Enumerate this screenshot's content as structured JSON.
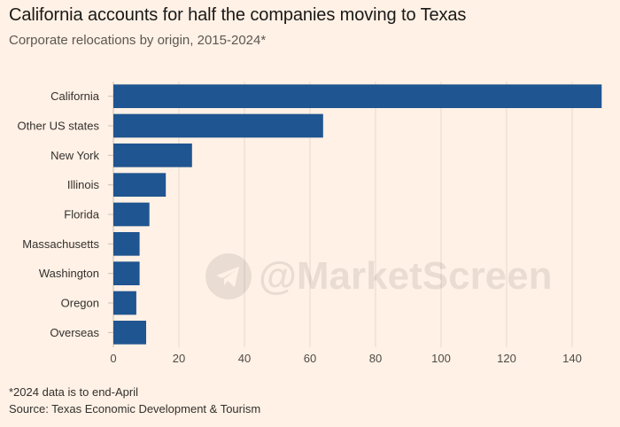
{
  "title": "California accounts for half the companies moving to Texas",
  "subtitle": "Corporate relocations by origin, 2015-2024*",
  "note": "*2024 data is to end-April",
  "source": "Source: Texas Economic Development & Tourism",
  "watermark": "@MarketScreen",
  "colors": {
    "bar": "#1f5590",
    "background": "#fff1e5"
  },
  "chart_data": {
    "type": "bar",
    "orientation": "horizontal",
    "title": "California accounts for half the companies moving to Texas",
    "subtitle": "Corporate relocations by origin, 2015-2024*",
    "categories": [
      "California",
      "Other US states",
      "New York",
      "Illinois",
      "Florida",
      "Massachusetts",
      "Washington",
      "Oregon",
      "Overseas"
    ],
    "values": [
      149,
      64,
      24,
      16,
      11,
      8,
      8,
      7,
      10
    ],
    "xlim": [
      0,
      150
    ],
    "xticks": [
      0,
      20,
      40,
      60,
      80,
      100,
      120,
      140
    ],
    "grid": true,
    "xlabel": "",
    "ylabel": ""
  }
}
